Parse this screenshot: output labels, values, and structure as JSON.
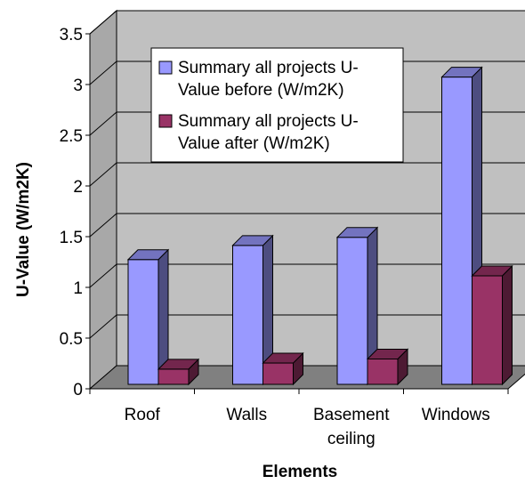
{
  "chart_data": {
    "type": "bar",
    "style": "3d-clustered-column",
    "categories": [
      "Roof",
      "Walls",
      "Basement ceiling",
      "Windows"
    ],
    "category_lines": [
      [
        "Roof"
      ],
      [
        "Walls"
      ],
      [
        "Basement",
        "ceiling"
      ],
      [
        "Windows"
      ]
    ],
    "series": [
      {
        "name": "Summary all projects U-Value before (W/m2K)",
        "name_lines": [
          "Summary all projects U-",
          "Value before (W/m2K)"
        ],
        "color": "#9999ff",
        "values": [
          1.23,
          1.37,
          1.45,
          3.03
        ]
      },
      {
        "name": "Summary all projects U-Value after (W/m2K)",
        "name_lines": [
          "Summary all projects U-",
          "Value after (W/m2K)"
        ],
        "color": "#993366",
        "values": [
          0.15,
          0.21,
          0.25,
          1.07
        ]
      }
    ],
    "xlabel": "Elements",
    "ylabel": "U-Value (W/m2K)",
    "ylim": [
      0,
      3.5
    ],
    "yticks": [
      "0",
      "0.5",
      "1",
      "1.5",
      "2",
      "2.5",
      "3",
      "3.5"
    ],
    "grid": true,
    "legend_position": "top-right",
    "wall_color": "#c0c0c0",
    "floor_color": "#808080"
  }
}
